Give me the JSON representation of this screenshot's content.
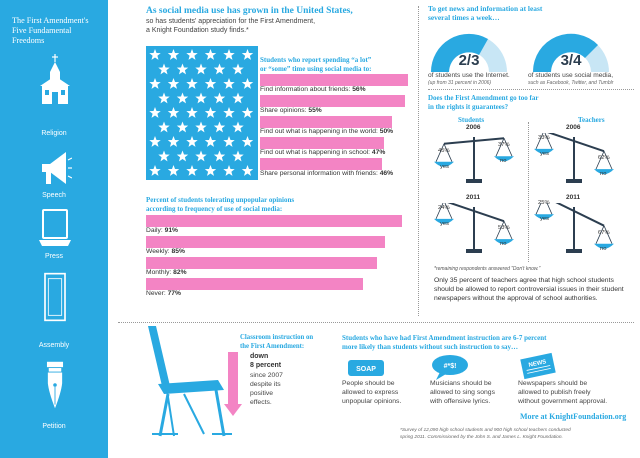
{
  "sidebar": {
    "title": "The First Amendment's Five Fundamental Freedoms",
    "items": [
      {
        "label": "Religion",
        "icon": "church-icon"
      },
      {
        "label": "Speech",
        "icon": "megaphone-icon"
      },
      {
        "label": "Press",
        "icon": "laptop-icon"
      },
      {
        "label": "Assembly",
        "icon": "door-icon"
      },
      {
        "label": "Petition",
        "icon": "fountain-pen-icon"
      }
    ]
  },
  "intro": {
    "headline": "As social media use has grown in the United States,",
    "subline": "so has students' appreciation for the First Amendment,",
    "subline2": "a Knight Foundation study finds.*"
  },
  "social_media": {
    "heading1": "Students who report spending “a lot”",
    "heading2": "or “some” time using social media to:",
    "items": [
      {
        "label": "Find information about friends:",
        "value": "56%",
        "pct": 56
      },
      {
        "label": "Share opinions:",
        "value": "55%",
        "pct": 55
      },
      {
        "label": "Find out what is happening in the world:",
        "value": "50%",
        "pct": 50
      },
      {
        "label": "Find out what is happening in school:",
        "value": "47%",
        "pct": 47
      },
      {
        "label": "Share personal information with friends:",
        "value": "46%",
        "pct": 46
      }
    ]
  },
  "tolerance": {
    "heading1": "Percent of students tolerating unpopular opinions",
    "heading2": "according to frequency of use of social media:",
    "items": [
      {
        "label": "Daily:",
        "value": "91%",
        "pct": 91
      },
      {
        "label": "Weekly:",
        "value": "85%",
        "pct": 85
      },
      {
        "label": "Monthly:",
        "value": "82%",
        "pct": 82
      },
      {
        "label": "Never:",
        "value": "77%",
        "pct": 77
      }
    ]
  },
  "news": {
    "heading1": "To get news and information at least",
    "heading2": "several times a week…",
    "internet": {
      "fraction": "2/3",
      "text": "of students use the Internet.",
      "note": "(up from 31 percent in 2006)"
    },
    "social": {
      "fraction": "3/4",
      "text": "of students use social media,",
      "note": "such as Facebook, Twitter, and Tumblr"
    }
  },
  "too_far": {
    "heading1": "Does the First Amendment go too far",
    "heading2": "in the rights it guarantees?",
    "students_label": "Students",
    "teachers_label": "Teachers",
    "yes_label": "yes",
    "no_label": "no",
    "students": [
      {
        "year": "2006",
        "yes": "45%",
        "no": "37%"
      },
      {
        "year": "2011",
        "yes": "24%",
        "no": "53%"
      }
    ],
    "teachers": [
      {
        "year": "2006",
        "yes": "33%",
        "no": "62%"
      },
      {
        "year": "2011",
        "yes": "25%",
        "no": "67%"
      }
    ],
    "footnote": "*remaining respondents answered “Don't know.”"
  },
  "teachers_note": "Only 35 percent of teachers agree that high school students should be allowed to report controversial issues in their student newspapers without the approval of school authorities.",
  "classroom": {
    "heading1": "Classroom instruction on",
    "heading2": "the First Amendment:",
    "word1": "down",
    "word2": "8 percent",
    "rest": "since 2007 despite its positive effects."
  },
  "instruction": {
    "heading1": "Students who have had First Amendment instruction are 6-7 percent",
    "heading2": "more likely than students without such instruction to say…",
    "items": [
      {
        "icon_text": "SOAP",
        "text1": "People should be",
        "text2": "allowed to express",
        "text3": "unpopular opinions."
      },
      {
        "icon_text": "#*$!",
        "text1": "Musicians should be",
        "text2": "allowed to sing songs",
        "text3": "with offensive lyrics."
      },
      {
        "icon_text": "NEWS",
        "text1": "Newspapers should be",
        "text2": "allowed to publish freely",
        "text3": "without government approval."
      }
    ]
  },
  "more": "More at KnightFoundation.org",
  "footnote1": "*Survey of 12,090 high school students and 900 high school teachers conducted",
  "footnote2": "spring 2011. Commissioned by the John S. and James L. Knight Foundation."
}
